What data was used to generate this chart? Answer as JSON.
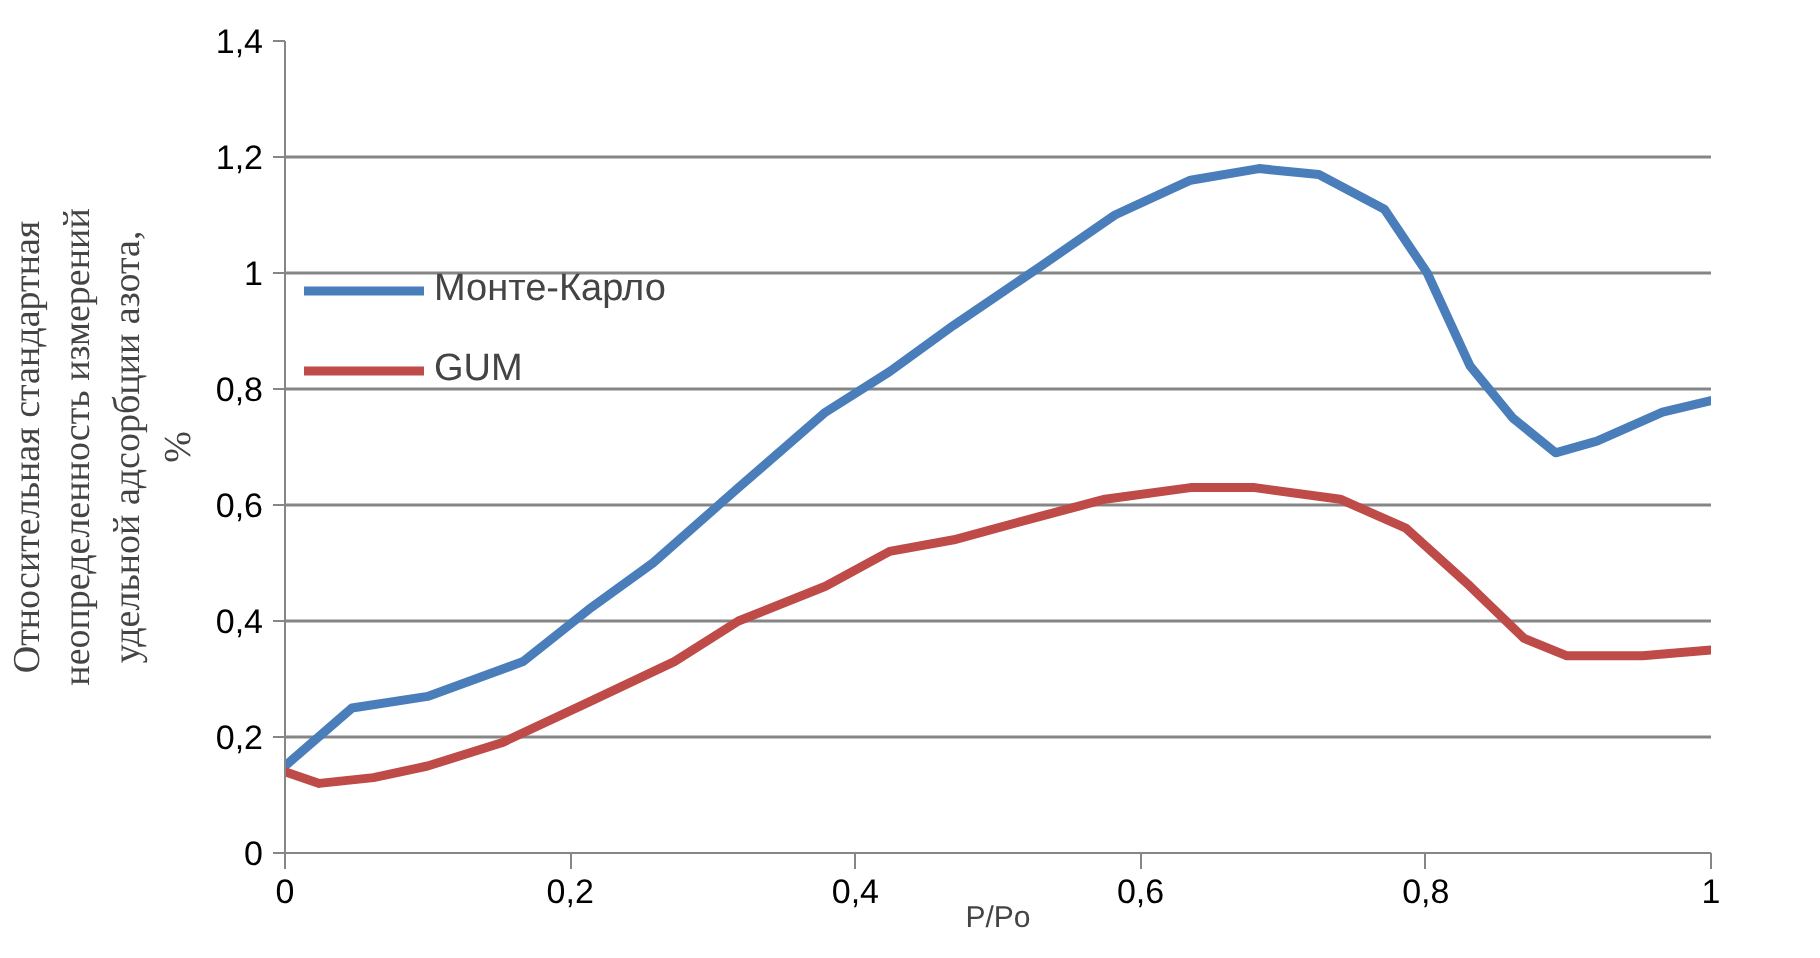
{
  "chart_data": {
    "type": "line",
    "xlabel": "P/Po",
    "ylabel": "Относительная стандартная неопределенность измерений удельной адсорбции азота, %",
    "xlim": [
      0,
      1
    ],
    "xticks": [
      0,
      {
        "value": 0.2,
        "label": "0,2"
      },
      {
        "value": 0.4,
        "label": "0,4"
      },
      {
        "value": 0.6,
        "label": "0,6"
      },
      {
        "value": 0.8,
        "label": "0,8"
      },
      1
    ],
    "ylim": [
      0,
      1.4
    ],
    "yticks": [
      0,
      {
        "value": 0.2,
        "label": "0,2"
      },
      {
        "value": 0.4,
        "label": "0,4"
      },
      {
        "value": 0.6,
        "label": "0,6"
      },
      {
        "value": 0.8,
        "label": "0,8"
      },
      1,
      {
        "value": 1.2,
        "label": "1,2"
      },
      {
        "value": 1.4,
        "label": "1,4"
      }
    ],
    "grid": "y",
    "legend": "left",
    "line_style": "solid",
    "marker": "none",
    "series": [
      {
        "name": "Монте-Карло",
        "color": "#4a7ebb",
        "x": [
          0,
          0.047,
          0.1,
          0.167,
          0.213,
          0.258,
          0.318,
          0.379,
          0.424,
          0.469,
          0.529,
          0.582,
          0.635,
          0.683,
          0.725,
          0.771,
          0.801,
          0.831,
          0.861,
          0.891,
          0.92,
          0.966,
          1.0
        ],
        "values": [
          0.15,
          0.25,
          0.27,
          0.33,
          0.42,
          0.5,
          0.63,
          0.76,
          0.83,
          0.91,
          1.01,
          1.1,
          1.16,
          1.18,
          1.17,
          1.11,
          1.0,
          0.84,
          0.75,
          0.69,
          0.71,
          0.76,
          0.78
        ]
      },
      {
        "name": "GUM",
        "color": "#be4b48",
        "x": [
          0,
          0.024,
          0.062,
          0.1,
          0.152,
          0.213,
          0.273,
          0.318,
          0.379,
          0.424,
          0.469,
          0.529,
          0.575,
          0.635,
          0.68,
          0.74,
          0.786,
          0.831,
          0.869,
          0.899,
          0.952,
          1.0
        ],
        "values": [
          0.14,
          0.12,
          0.13,
          0.15,
          0.19,
          0.26,
          0.33,
          0.4,
          0.46,
          0.52,
          0.54,
          0.58,
          0.61,
          0.63,
          0.63,
          0.61,
          0.56,
          0.46,
          0.37,
          0.34,
          0.34,
          0.35
        ]
      }
    ]
  }
}
